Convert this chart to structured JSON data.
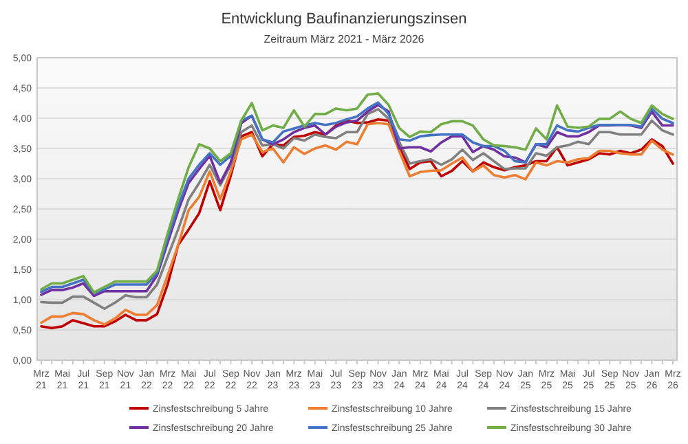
{
  "chart_data": {
    "type": "line",
    "title": "Entwicklung Baufinanzierungszinsen",
    "subtitle": "Zeitraum März 2021 - März 2026",
    "categories": [
      "Mrz 21",
      null,
      "Mai 21",
      null,
      "Jul 21",
      null,
      "Sep 21",
      null,
      "Nov 21",
      null,
      "Jan 22",
      null,
      "Mrz 22",
      null,
      "Mai 22",
      null,
      "Jul 22",
      null,
      "Sep 22",
      null,
      "Nov 22",
      null,
      "Jan 23",
      null,
      "Mrz 23",
      null,
      "Mai 23",
      null,
      "Jul 23",
      null,
      "Sep 23",
      null,
      "Nov 23",
      null,
      "Jan 24",
      null,
      "Mrz 24",
      null,
      "Mai 24",
      null,
      "Jul 24",
      null,
      "Sep 24",
      null,
      "Nov 24",
      null,
      "Jan 25",
      null,
      "Mrz 25",
      null,
      "Mai 25",
      null,
      "Jul 25",
      null,
      "Sep 25",
      null,
      "Nov 25",
      null,
      "Jan 26",
      null,
      "Mrz 26"
    ],
    "series": [
      {
        "name": "Zinsfestschreibung 5 Jahre",
        "color": "#c00000",
        "values": [
          0.56,
          0.53,
          0.56,
          0.66,
          0.61,
          0.56,
          0.56,
          0.64,
          0.75,
          0.66,
          0.66,
          0.76,
          1.25,
          1.9,
          2.16,
          2.43,
          2.96,
          2.48,
          3.05,
          3.7,
          3.77,
          3.37,
          3.57,
          3.55,
          3.69,
          3.71,
          3.77,
          3.73,
          3.88,
          3.96,
          3.92,
          3.93,
          3.98,
          3.96,
          3.54,
          3.16,
          3.27,
          3.29,
          3.04,
          3.13,
          3.29,
          3.12,
          3.27,
          3.19,
          3.14,
          3.19,
          3.22,
          3.29,
          3.29,
          3.52,
          3.22,
          3.27,
          3.32,
          3.42,
          3.4,
          3.46,
          3.42,
          3.48,
          3.65,
          3.54,
          3.25
        ]
      },
      {
        "name": "Zinsfestschreibung 10 Jahre",
        "color": "#ed7d31",
        "values": [
          0.62,
          0.72,
          0.72,
          0.78,
          0.76,
          0.66,
          0.59,
          0.69,
          0.83,
          0.75,
          0.75,
          0.91,
          1.4,
          1.9,
          2.48,
          2.7,
          3.12,
          2.66,
          3.12,
          3.65,
          3.73,
          3.44,
          3.5,
          3.27,
          3.52,
          3.41,
          3.5,
          3.55,
          3.48,
          3.61,
          3.57,
          3.9,
          3.92,
          3.9,
          3.46,
          3.04,
          3.11,
          3.13,
          3.14,
          3.25,
          3.35,
          3.12,
          3.22,
          3.06,
          3.02,
          3.06,
          2.99,
          3.27,
          3.22,
          3.29,
          3.27,
          3.32,
          3.34,
          3.46,
          3.46,
          3.42,
          3.4,
          3.4,
          3.63,
          3.48,
          3.4
        ]
      },
      {
        "name": "Zinsfestschreibung 15 Jahre",
        "color": "#808080",
        "values": [
          0.96,
          0.95,
          0.95,
          1.05,
          1.05,
          0.95,
          0.85,
          0.95,
          1.07,
          1.04,
          1.04,
          1.25,
          1.71,
          2.16,
          2.66,
          2.93,
          3.23,
          2.89,
          3.23,
          3.77,
          3.88,
          3.55,
          3.57,
          3.5,
          3.67,
          3.63,
          3.73,
          3.69,
          3.67,
          3.77,
          3.77,
          4.07,
          4.15,
          3.99,
          3.61,
          3.25,
          3.29,
          3.32,
          3.23,
          3.32,
          3.48,
          3.31,
          3.42,
          3.29,
          3.16,
          3.17,
          3.17,
          3.42,
          3.38,
          3.52,
          3.55,
          3.61,
          3.57,
          3.77,
          3.77,
          3.73,
          3.73,
          3.73,
          3.96,
          3.8,
          3.73
        ]
      },
      {
        "name": "Zinsfestschreibung 20 Jahre",
        "color": "#7030a0",
        "values": [
          1.08,
          1.16,
          1.16,
          1.2,
          1.27,
          1.06,
          1.14,
          1.14,
          1.14,
          1.14,
          1.14,
          1.4,
          1.94,
          2.47,
          2.93,
          3.16,
          3.38,
          2.93,
          3.27,
          3.92,
          4.04,
          3.65,
          3.57,
          3.65,
          3.77,
          3.84,
          3.88,
          3.73,
          3.86,
          3.93,
          3.96,
          4.11,
          4.22,
          4.11,
          3.5,
          3.52,
          3.52,
          3.45,
          3.6,
          3.7,
          3.7,
          3.44,
          3.54,
          3.48,
          3.37,
          3.35,
          3.27,
          3.57,
          3.52,
          3.77,
          3.7,
          3.7,
          3.77,
          3.88,
          3.88,
          3.89,
          3.88,
          3.84,
          4.11,
          3.88,
          3.88
        ]
      },
      {
        "name": "Zinsfestschreibung 25 Jahre",
        "color": "#4472c4",
        "values": [
          1.13,
          1.21,
          1.21,
          1.27,
          1.33,
          1.11,
          1.17,
          1.25,
          1.25,
          1.25,
          1.25,
          1.44,
          2.01,
          2.55,
          3.0,
          3.23,
          3.42,
          3.23,
          3.38,
          3.96,
          4.04,
          3.65,
          3.6,
          3.78,
          3.83,
          3.88,
          3.92,
          3.89,
          3.92,
          3.98,
          4.03,
          4.16,
          4.26,
          4.07,
          3.65,
          3.63,
          3.7,
          3.72,
          3.73,
          3.73,
          3.73,
          3.6,
          3.54,
          3.54,
          3.46,
          3.29,
          3.27,
          3.57,
          3.57,
          3.88,
          3.8,
          3.78,
          3.84,
          3.89,
          3.89,
          3.89,
          3.89,
          3.86,
          4.16,
          3.99,
          3.92
        ]
      },
      {
        "name": "Zinsfestschreibung 30 Jahre",
        "color": "#70ad47",
        "values": [
          1.17,
          1.27,
          1.27,
          1.33,
          1.39,
          1.12,
          1.21,
          1.3,
          1.3,
          1.3,
          1.3,
          1.48,
          2.09,
          2.66,
          3.19,
          3.57,
          3.5,
          3.29,
          3.42,
          3.96,
          4.25,
          3.8,
          3.88,
          3.84,
          4.13,
          3.86,
          4.07,
          4.07,
          4.16,
          4.13,
          4.16,
          4.39,
          4.41,
          4.22,
          3.84,
          3.69,
          3.78,
          3.77,
          3.9,
          3.95,
          3.95,
          3.88,
          3.65,
          3.55,
          3.54,
          3.52,
          3.48,
          3.83,
          3.65,
          4.21,
          3.86,
          3.84,
          3.86,
          3.99,
          3.99,
          4.11,
          3.99,
          3.92,
          4.21,
          4.07,
          3.99
        ]
      }
    ],
    "ylim": [
      0,
      5
    ],
    "yticks": [
      {
        "value": 0,
        "label": "0,00"
      },
      {
        "value": 0.5,
        "label": "0,50"
      },
      {
        "value": 1,
        "label": "1,00"
      },
      {
        "value": 1.5,
        "label": "1,50"
      },
      {
        "value": 2,
        "label": "2,00"
      },
      {
        "value": 2.5,
        "label": "2,50"
      },
      {
        "value": 3,
        "label": "3,00"
      },
      {
        "value": 3.5,
        "label": "3,50"
      },
      {
        "value": 4,
        "label": "4,00"
      },
      {
        "value": 4.5,
        "label": "4,50"
      },
      {
        "value": 5,
        "label": "5,00"
      }
    ],
    "grid": "y",
    "legend": "bottom",
    "marker": "none",
    "line_style": "solid"
  }
}
